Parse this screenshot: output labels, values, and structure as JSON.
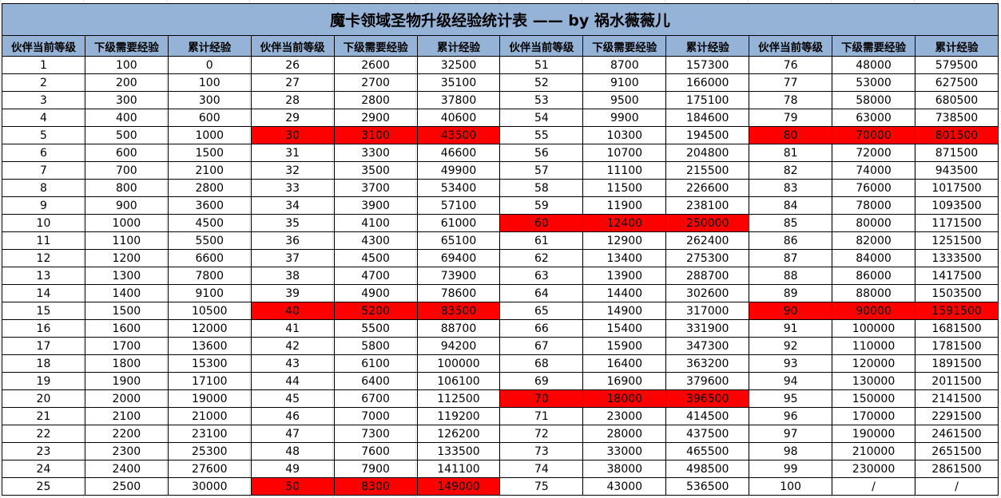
{
  "title": "魔卡领域圣物升级经验统计表 —— by 祸水薇薇儿",
  "colors": {
    "header_bg": "#95B3D7",
    "highlight": "#FF0000"
  },
  "headers": [
    "伙伴当前等级",
    "下级需要经验",
    "累计经验",
    "伙伴当前等级",
    "下级需要经验",
    "累计经验",
    "伙伴当前等级",
    "下级需要经验",
    "累计经验",
    "伙伴当前等级",
    "下级需要经验",
    "累计经验"
  ],
  "highlight_levels": [
    "30",
    "40",
    "50",
    "60",
    "70",
    "80",
    "90"
  ],
  "rows": [
    [
      "1",
      "100",
      "0",
      "26",
      "2600",
      "32500",
      "51",
      "8700",
      "157300",
      "76",
      "48000",
      "579500"
    ],
    [
      "2",
      "200",
      "100",
      "27",
      "2700",
      "35100",
      "52",
      "9100",
      "166000",
      "77",
      "53000",
      "627500"
    ],
    [
      "3",
      "300",
      "300",
      "28",
      "2800",
      "37800",
      "53",
      "9500",
      "175100",
      "78",
      "58000",
      "680500"
    ],
    [
      "4",
      "400",
      "600",
      "29",
      "2900",
      "40600",
      "54",
      "9900",
      "184600",
      "79",
      "63000",
      "738500"
    ],
    [
      "5",
      "500",
      "1000",
      "30",
      "3100",
      "43500",
      "55",
      "10300",
      "194500",
      "80",
      "70000",
      "801500"
    ],
    [
      "6",
      "600",
      "1500",
      "31",
      "3300",
      "46600",
      "56",
      "10700",
      "204800",
      "81",
      "72000",
      "871500"
    ],
    [
      "7",
      "700",
      "2100",
      "32",
      "3500",
      "49900",
      "57",
      "11100",
      "215500",
      "82",
      "74000",
      "943500"
    ],
    [
      "8",
      "800",
      "2800",
      "33",
      "3700",
      "53400",
      "58",
      "11500",
      "226600",
      "83",
      "76000",
      "1017500"
    ],
    [
      "9",
      "900",
      "3600",
      "34",
      "3900",
      "57100",
      "59",
      "11900",
      "238100",
      "84",
      "78000",
      "1093500"
    ],
    [
      "10",
      "1000",
      "4500",
      "35",
      "4100",
      "61000",
      "60",
      "12400",
      "250000",
      "85",
      "80000",
      "1171500"
    ],
    [
      "11",
      "1100",
      "5500",
      "36",
      "4300",
      "65100",
      "61",
      "12900",
      "262400",
      "86",
      "82000",
      "1251500"
    ],
    [
      "12",
      "1200",
      "6600",
      "37",
      "4500",
      "69400",
      "62",
      "13400",
      "275300",
      "87",
      "84000",
      "1333500"
    ],
    [
      "13",
      "1300",
      "7800",
      "38",
      "4700",
      "73900",
      "63",
      "13900",
      "288700",
      "88",
      "86000",
      "1417500"
    ],
    [
      "14",
      "1400",
      "9100",
      "39",
      "4900",
      "78600",
      "64",
      "14400",
      "302600",
      "89",
      "88000",
      "1503500"
    ],
    [
      "15",
      "1500",
      "10500",
      "40",
      "5200",
      "83500",
      "65",
      "14900",
      "317000",
      "90",
      "90000",
      "1591500"
    ],
    [
      "16",
      "1600",
      "12000",
      "41",
      "5500",
      "88700",
      "66",
      "15400",
      "331900",
      "91",
      "100000",
      "1681500"
    ],
    [
      "17",
      "1700",
      "13600",
      "42",
      "5800",
      "94200",
      "67",
      "15900",
      "347300",
      "92",
      "110000",
      "1781500"
    ],
    [
      "18",
      "1800",
      "15300",
      "43",
      "6100",
      "100000",
      "68",
      "16400",
      "363200",
      "93",
      "120000",
      "1891500"
    ],
    [
      "19",
      "1900",
      "17100",
      "44",
      "6400",
      "106100",
      "69",
      "16900",
      "379600",
      "94",
      "130000",
      "2011500"
    ],
    [
      "20",
      "2000",
      "19000",
      "45",
      "6700",
      "112500",
      "70",
      "18000",
      "396500",
      "95",
      "150000",
      "2141500"
    ],
    [
      "21",
      "2100",
      "21000",
      "46",
      "7000",
      "119200",
      "71",
      "23000",
      "414500",
      "96",
      "170000",
      "2291500"
    ],
    [
      "22",
      "2200",
      "23100",
      "47",
      "7300",
      "126200",
      "72",
      "28000",
      "437500",
      "97",
      "190000",
      "2461500"
    ],
    [
      "23",
      "2300",
      "25300",
      "48",
      "7600",
      "133500",
      "73",
      "33000",
      "465500",
      "98",
      "210000",
      "2651500"
    ],
    [
      "24",
      "2400",
      "27600",
      "49",
      "7900",
      "141100",
      "74",
      "38000",
      "498500",
      "99",
      "230000",
      "2861500"
    ],
    [
      "25",
      "2500",
      "30000",
      "50",
      "8300",
      "149000",
      "75",
      "43000",
      "536500",
      "100",
      "/",
      "/"
    ]
  ]
}
